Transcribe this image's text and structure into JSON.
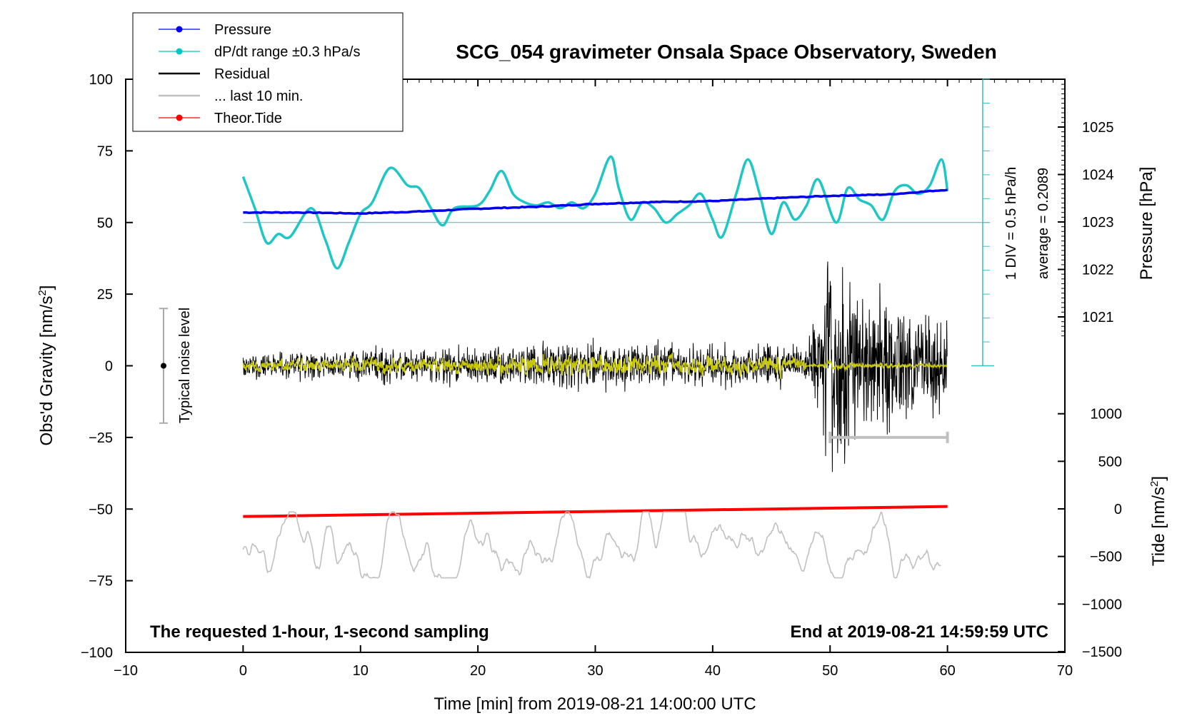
{
  "chart_data": {
    "type": "line",
    "title": "SCG_054 gravimeter Onsala Space Observatory, Sweden",
    "xlabel": "Time [min] from 2019-08-21 14:00:00 UTC",
    "ylabel_left": "Obs'd Gravity [nm/s",
    "ylabel_left_sup": "2",
    "ylabel_left_end": "]",
    "ylabel_pressure": "Pressure [hPa]",
    "ylabel_tide": "Tide [nm/s",
    "ylabel_tide_sup": "2",
    "ylabel_tide_end": "]",
    "xlim": [
      -10,
      70
    ],
    "ylim": [
      -100,
      100
    ],
    "x_ticks": [
      "−10",
      "0",
      "10",
      "20",
      "30",
      "40",
      "50",
      "60",
      "70"
    ],
    "x_tick_values": [
      -10,
      0,
      10,
      20,
      30,
      40,
      50,
      60,
      70
    ],
    "y_ticks": [
      "100",
      "75",
      "50",
      "25",
      "0",
      "−25",
      "−50",
      "−75",
      "−100"
    ],
    "y_tick_values": [
      100,
      75,
      50,
      25,
      0,
      -25,
      -50,
      -75,
      -100
    ],
    "pressure_ticks": [
      "1025",
      "1024",
      "1023",
      "1022",
      "1021"
    ],
    "pressure_tick_values": [
      1025,
      1024,
      1023,
      1022,
      1021
    ],
    "tide_ticks": [
      "1000",
      "500",
      "0",
      "−500",
      "−1000",
      "−1500"
    ],
    "tide_tick_values": [
      1000,
      500,
      0,
      -500,
      -1000,
      -1500
    ],
    "legend": [
      {
        "label": "Pressure",
        "color": "#0000ff",
        "marker": true
      },
      {
        "label": "dP/dt range ±0.3 hPa/s",
        "color": "#00c8c8",
        "marker": true
      },
      {
        "label": "Residual",
        "color": "#000000",
        "marker": false
      },
      {
        "label": "... last 10 min.",
        "color": "#c0c0c0",
        "marker": false
      },
      {
        "label": "Theor.Tide",
        "color": "#ff0000",
        "marker": true
      }
    ],
    "div_label": "1 DIV = 0.5 hPa/h",
    "average_label": "average = 0.2089",
    "noise_label": "Typical noise level",
    "noise_range": [
      -20,
      20
    ],
    "footer_left": "The requested 1-hour, 1-second sampling",
    "footer_right": "End at 2019-08-21 14:59:59 UTC",
    "pressure_series": {
      "x": [
        0,
        5,
        10,
        15,
        20,
        25,
        30,
        35,
        40,
        45,
        50,
        55,
        60
      ],
      "hPa": [
        1023.2,
        1023.2,
        1023.18,
        1023.22,
        1023.28,
        1023.32,
        1023.38,
        1023.42,
        1023.44,
        1023.5,
        1023.55,
        1023.58,
        1023.68
      ]
    },
    "dpdt_series": {
      "x": [
        0,
        1,
        2,
        3,
        4,
        5.8,
        7,
        8,
        9,
        10,
        11,
        12.5,
        14,
        15,
        16,
        17,
        18,
        20,
        21,
        22,
        23,
        24,
        25,
        26,
        27,
        28,
        29,
        30,
        31.3,
        32,
        33,
        34,
        35,
        36,
        37,
        38,
        39,
        40,
        40.8,
        42,
        43,
        44,
        45,
        46,
        47,
        48,
        49,
        50.5,
        51.5,
        52.5,
        53.5,
        54.5,
        55.5,
        56.5,
        57.5,
        58.5,
        59.5,
        60
      ],
      "y": [
        66,
        55,
        43,
        46,
        45,
        55,
        44,
        34,
        43,
        53,
        57,
        69,
        63,
        62,
        55,
        49,
        55,
        56,
        61,
        68,
        60,
        57,
        56,
        57,
        55,
        57,
        55,
        60,
        73,
        62,
        51,
        57,
        55,
        50,
        53,
        56,
        60,
        51,
        45,
        60,
        72,
        60,
        46,
        57,
        51,
        56,
        65,
        50,
        62,
        58,
        56,
        51,
        61,
        63,
        60,
        63,
        72,
        61
      ]
    },
    "residual_std_nm_s2": {
      "x": [
        0,
        20,
        30,
        48,
        50,
        56,
        60
      ],
      "sigma": [
        2,
        3,
        4,
        3,
        15,
        10,
        8
      ]
    },
    "tide_nm_s2": {
      "x": [
        0,
        60
      ],
      "y": [
        -80,
        25
      ]
    },
    "last_10_min_bar": {
      "x": [
        50,
        60
      ],
      "y": -25
    },
    "pressure_rate_scale": {
      "x": 63,
      "y_range": [
        0,
        100
      ],
      "divisions": 12
    }
  }
}
